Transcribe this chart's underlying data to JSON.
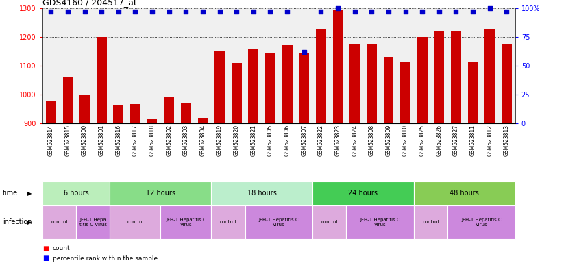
{
  "title": "GDS4160 / 204517_at",
  "samples": [
    "GSM523814",
    "GSM523815",
    "GSM523800",
    "GSM523801",
    "GSM523816",
    "GSM523817",
    "GSM523818",
    "GSM523802",
    "GSM523803",
    "GSM523804",
    "GSM523819",
    "GSM523820",
    "GSM523821",
    "GSM523805",
    "GSM523806",
    "GSM523807",
    "GSM523822",
    "GSM523823",
    "GSM523824",
    "GSM523808",
    "GSM523809",
    "GSM523810",
    "GSM523825",
    "GSM523826",
    "GSM523827",
    "GSM523811",
    "GSM523812",
    "GSM523813"
  ],
  "counts": [
    980,
    1063,
    1000,
    1200,
    962,
    968,
    915,
    993,
    970,
    920,
    1150,
    1110,
    1160,
    1145,
    1170,
    1145,
    1225,
    1295,
    1175,
    1175,
    1130,
    1115,
    1200,
    1220,
    1220,
    1115,
    1225,
    1175
  ],
  "percentile_ranks": [
    97,
    97,
    97,
    97,
    97,
    97,
    97,
    97,
    97,
    97,
    97,
    97,
    97,
    97,
    97,
    62,
    97,
    100,
    97,
    97,
    97,
    97,
    97,
    97,
    97,
    97,
    100,
    97
  ],
  "ymin": 900,
  "ymax": 1300,
  "yticks": [
    900,
    1000,
    1100,
    1200,
    1300
  ],
  "y2min": 0,
  "y2max": 100,
  "y2ticks": [
    0,
    25,
    50,
    75,
    100
  ],
  "bar_color": "#cc0000",
  "dot_color": "#0000cc",
  "bg_color": "#f0f0f0",
  "time_groups": [
    {
      "label": "6 hours",
      "start": 0,
      "end": 4,
      "color": "#bbeebb"
    },
    {
      "label": "12 hours",
      "start": 4,
      "end": 10,
      "color": "#88dd88"
    },
    {
      "label": "18 hours",
      "start": 10,
      "end": 16,
      "color": "#bbeecc"
    },
    {
      "label": "24 hours",
      "start": 16,
      "end": 22,
      "color": "#44cc55"
    },
    {
      "label": "48 hours",
      "start": 22,
      "end": 28,
      "color": "#88cc55"
    }
  ],
  "infection_groups": [
    {
      "label": "control",
      "start": 0,
      "end": 2,
      "color": "#ddaadd"
    },
    {
      "label": "JFH-1 Hepa\ntitis C Virus",
      "start": 2,
      "end": 4,
      "color": "#cc88dd"
    },
    {
      "label": "control",
      "start": 4,
      "end": 7,
      "color": "#ddaadd"
    },
    {
      "label": "JFH-1 Hepatitis C\nVirus",
      "start": 7,
      "end": 10,
      "color": "#cc88dd"
    },
    {
      "label": "control",
      "start": 10,
      "end": 12,
      "color": "#ddaadd"
    },
    {
      "label": "JFH-1 Hepatitis C\nVirus",
      "start": 12,
      "end": 16,
      "color": "#cc88dd"
    },
    {
      "label": "control",
      "start": 16,
      "end": 18,
      "color": "#ddaadd"
    },
    {
      "label": "JFH-1 Hepatitis C\nVirus",
      "start": 18,
      "end": 22,
      "color": "#cc88dd"
    },
    {
      "label": "control",
      "start": 22,
      "end": 24,
      "color": "#ddaadd"
    },
    {
      "label": "JFH-1 Hepatitis C\nVirus",
      "start": 24,
      "end": 28,
      "color": "#cc88dd"
    }
  ]
}
